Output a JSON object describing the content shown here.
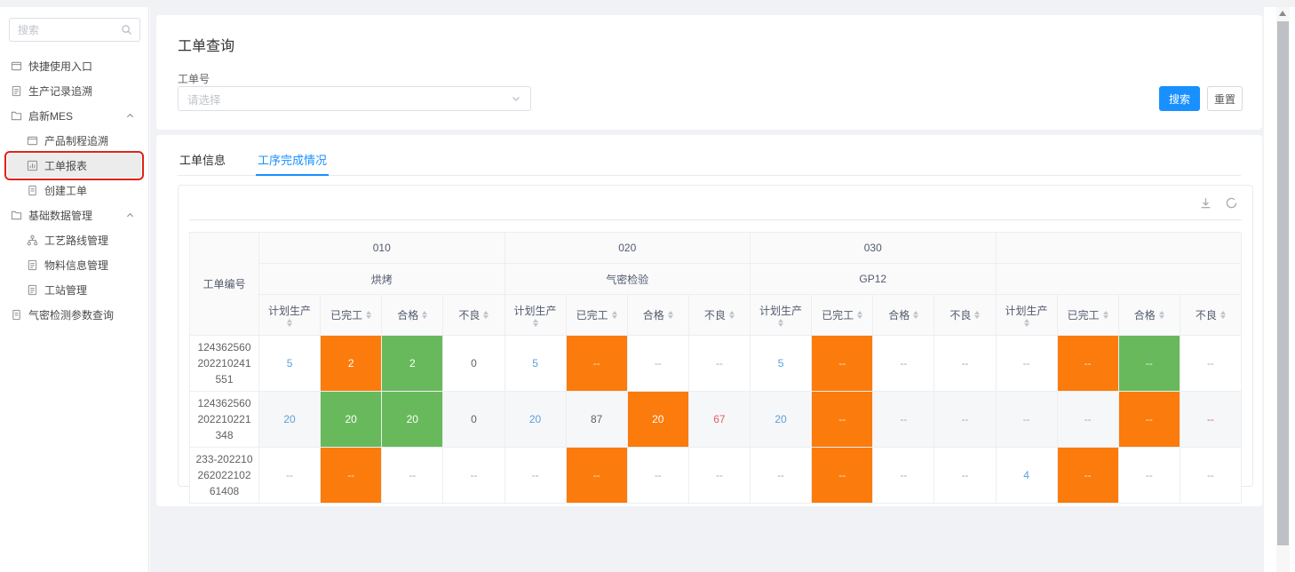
{
  "sidebar": {
    "search_placeholder": "搜索",
    "items": [
      {
        "label": "快捷使用入口",
        "icon": "window-icon",
        "level": 1
      },
      {
        "label": "生产记录追溯",
        "icon": "doc-icon",
        "level": 1
      },
      {
        "label": "启新MES",
        "icon": "folder-icon",
        "level": 1,
        "chevron": true
      },
      {
        "label": "产品制程追溯",
        "icon": "window-icon",
        "level": 2
      },
      {
        "label": "工单报表",
        "icon": "chart-icon",
        "level": 2,
        "selected": true,
        "annotated": true
      },
      {
        "label": "创建工单",
        "icon": "file-icon",
        "level": 2
      },
      {
        "label": "基础数据管理",
        "icon": "folder-icon",
        "level": 1,
        "chevron": true
      },
      {
        "label": "工艺路线管理",
        "icon": "org-icon",
        "level": 2
      },
      {
        "label": "物料信息管理",
        "icon": "doc-icon",
        "level": 2
      },
      {
        "label": "工站管理",
        "icon": "doc-icon",
        "level": 2
      },
      {
        "label": "气密检测参数查询",
        "icon": "file-icon",
        "level": 1
      }
    ]
  },
  "query": {
    "title": "工单查询",
    "field_label": "工单号",
    "select_placeholder": "请选择",
    "search_button": "搜索",
    "reset_button": "重置"
  },
  "tabs": [
    {
      "label": "工单信息",
      "active": false
    },
    {
      "label": "工序完成情况",
      "active": true
    }
  ],
  "toolbar_icons": [
    "download-icon",
    "sync-icon"
  ],
  "table": {
    "row_header": "工单编号",
    "groups": [
      {
        "code": "010",
        "name": "烘烤"
      },
      {
        "code": "020",
        "name": "气密检验"
      },
      {
        "code": "030",
        "name": "GP12"
      },
      {
        "code": "",
        "name": ""
      }
    ],
    "subcols": [
      "计划生产",
      "已完工",
      "合格",
      "不良"
    ],
    "rows": [
      {
        "order": "124362560202210241551",
        "cells": [
          {
            "t": "5",
            "c": "blue"
          },
          {
            "t": "2",
            "bg": "orange"
          },
          {
            "t": "2",
            "bg": "green"
          },
          {
            "t": "0"
          },
          {
            "t": "5",
            "c": "blue"
          },
          {
            "t": "--",
            "bg": "orange"
          },
          {
            "t": "--"
          },
          {
            "t": "--"
          },
          {
            "t": "5",
            "c": "blue"
          },
          {
            "t": "--",
            "bg": "orange"
          },
          {
            "t": "--"
          },
          {
            "t": "--"
          },
          {
            "t": "--"
          },
          {
            "t": "--",
            "bg": "orange"
          },
          {
            "t": "--",
            "bg": "green"
          },
          {
            "t": "--"
          }
        ]
      },
      {
        "order": "124362560202210221348",
        "cells": [
          {
            "t": "20",
            "c": "blue"
          },
          {
            "t": "20",
            "bg": "green"
          },
          {
            "t": "20",
            "bg": "green"
          },
          {
            "t": "0"
          },
          {
            "t": "20",
            "c": "blue"
          },
          {
            "t": "87"
          },
          {
            "t": "20",
            "bg": "orange"
          },
          {
            "t": "67",
            "c": "red"
          },
          {
            "t": "20",
            "c": "blue"
          },
          {
            "t": "--",
            "bg": "orange"
          },
          {
            "t": "--"
          },
          {
            "t": "--"
          },
          {
            "t": "--"
          },
          {
            "t": "--"
          },
          {
            "t": "--",
            "bg": "orange"
          },
          {
            "t": "--",
            "c": "red"
          }
        ]
      },
      {
        "order": "233-20221026202210261408",
        "cells": [
          {
            "t": "--"
          },
          {
            "t": "--",
            "bg": "orange"
          },
          {
            "t": "--"
          },
          {
            "t": "--"
          },
          {
            "t": "--"
          },
          {
            "t": "--",
            "bg": "orange"
          },
          {
            "t": "--"
          },
          {
            "t": "--"
          },
          {
            "t": "--"
          },
          {
            "t": "--",
            "bg": "orange"
          },
          {
            "t": "--"
          },
          {
            "t": "--"
          },
          {
            "t": "4",
            "c": "blue"
          },
          {
            "t": "--",
            "bg": "orange"
          },
          {
            "t": "--"
          },
          {
            "t": "--"
          }
        ]
      }
    ]
  },
  "colors": {
    "primary_blue": "#1890ff",
    "cell_orange": "#fb7b0c",
    "cell_green": "#68b95c",
    "link_blue": "#5b9fd9",
    "bad_red": "#e25f5f",
    "annotation_red": "#e0211a"
  }
}
